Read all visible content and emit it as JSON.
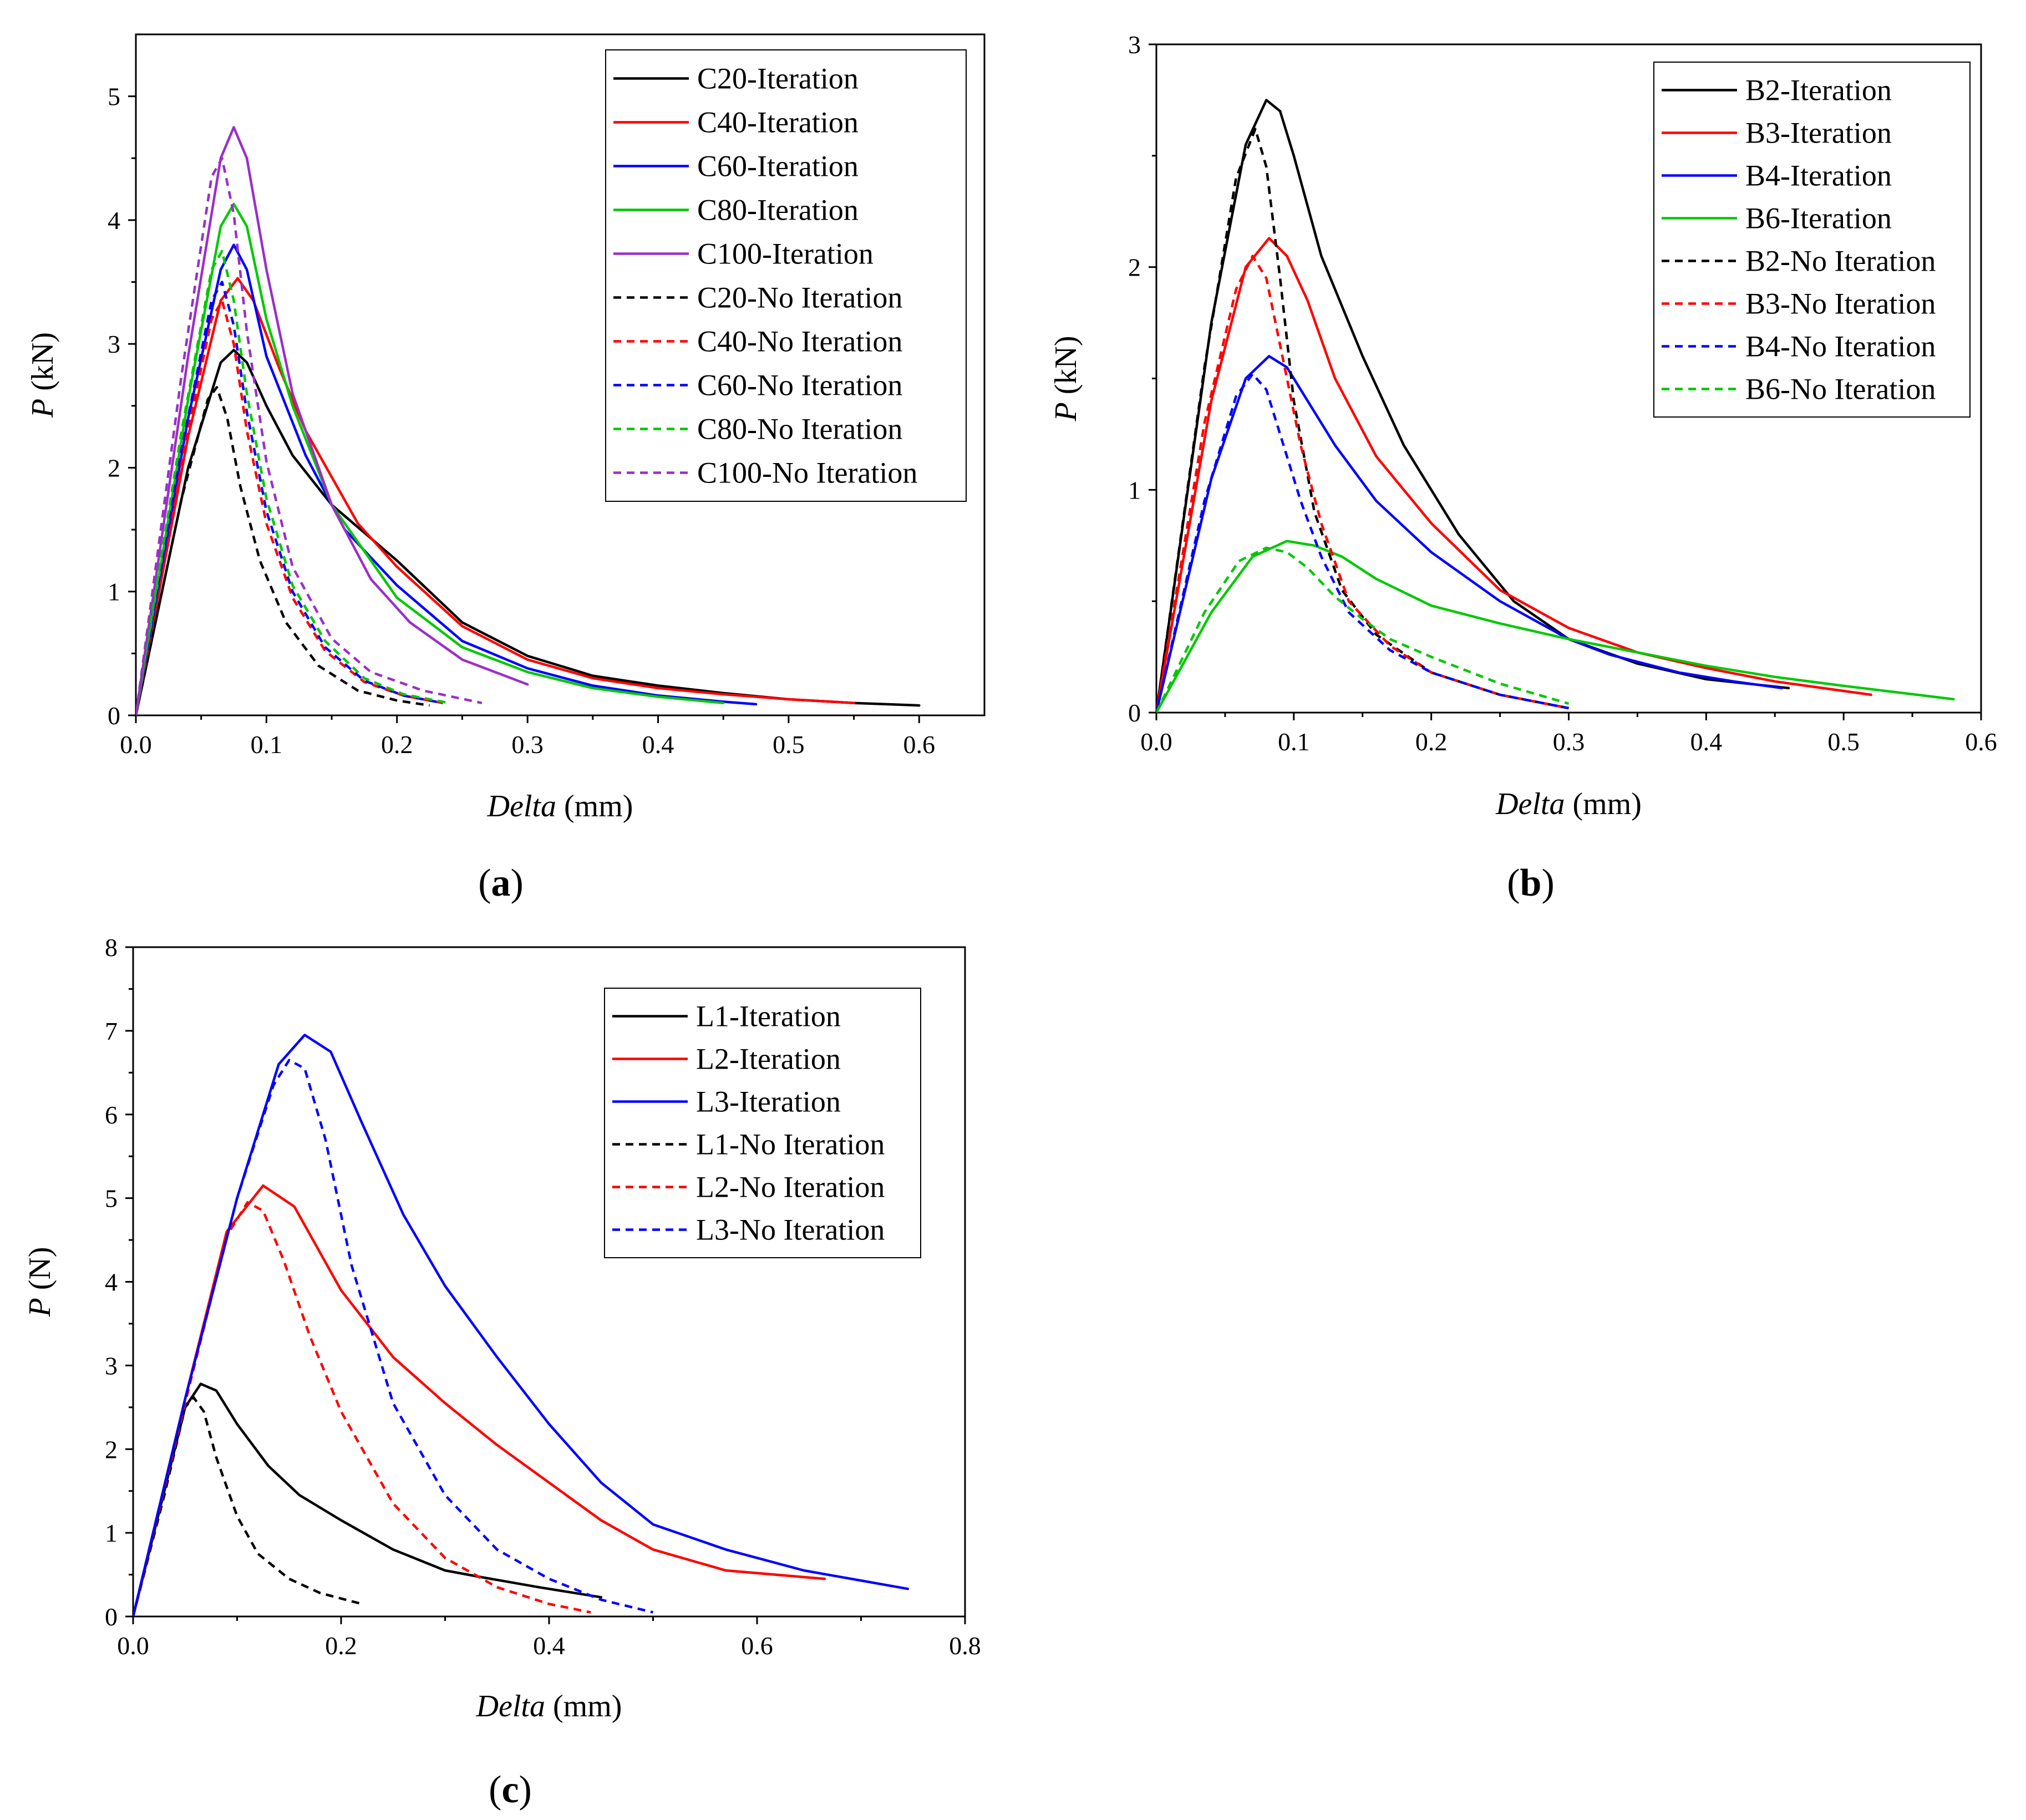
{
  "chart_data": [
    {
      "panel": "a",
      "type": "line",
      "caption_letter": "a",
      "xlabel_var": "Delta",
      "xlabel_unit": "(mm)",
      "ylabel_var": "P",
      "ylabel_unit": "(kN)",
      "xlim": [
        0,
        0.65
      ],
      "ylim": [
        0,
        5.5
      ],
      "xticks": [
        "0.0",
        "0.1",
        "0.2",
        "0.3",
        "0.4",
        "0.5",
        "0.6"
      ],
      "yticks": [
        "0",
        "1",
        "2",
        "3",
        "4",
        "5"
      ],
      "legend_position": "top-right",
      "series": [
        {
          "name": "C20-Iteration",
          "color": "#000000",
          "dashed": false,
          "x": [
            0,
            0.04,
            0.065,
            0.075,
            0.085,
            0.1,
            0.12,
            0.15,
            0.2,
            0.25,
            0.3,
            0.35,
            0.4,
            0.45,
            0.5,
            0.55,
            0.6
          ],
          "y": [
            0,
            2.0,
            2.85,
            2.95,
            2.85,
            2.5,
            2.1,
            1.7,
            1.25,
            0.75,
            0.48,
            0.32,
            0.24,
            0.18,
            0.13,
            0.1,
            0.08
          ]
        },
        {
          "name": "C40-Iteration",
          "color": "#ff0000",
          "dashed": false,
          "x": [
            0,
            0.04,
            0.065,
            0.078,
            0.09,
            0.11,
            0.13,
            0.17,
            0.2,
            0.25,
            0.3,
            0.35,
            0.4,
            0.45,
            0.5,
            0.55
          ],
          "y": [
            0,
            2.25,
            3.35,
            3.53,
            3.35,
            2.8,
            2.3,
            1.55,
            1.2,
            0.72,
            0.45,
            0.3,
            0.22,
            0.17,
            0.13,
            0.1
          ]
        },
        {
          "name": "C60-Iteration",
          "color": "#0000ff",
          "dashed": false,
          "x": [
            0,
            0.04,
            0.065,
            0.075,
            0.085,
            0.1,
            0.13,
            0.16,
            0.2,
            0.25,
            0.3,
            0.35,
            0.4,
            0.45,
            0.475
          ],
          "y": [
            0,
            2.4,
            3.6,
            3.8,
            3.6,
            2.9,
            2.1,
            1.5,
            1.05,
            0.6,
            0.38,
            0.24,
            0.16,
            0.11,
            0.09
          ]
        },
        {
          "name": "C80-Iteration",
          "color": "#00c800",
          "dashed": false,
          "x": [
            0,
            0.04,
            0.065,
            0.075,
            0.085,
            0.1,
            0.12,
            0.15,
            0.2,
            0.25,
            0.3,
            0.35,
            0.4,
            0.45
          ],
          "y": [
            0,
            2.55,
            3.95,
            4.13,
            3.95,
            3.2,
            2.5,
            1.7,
            0.95,
            0.55,
            0.35,
            0.22,
            0.15,
            0.1
          ]
        },
        {
          "name": "C100-Iteration",
          "color": "#9b2fc8",
          "dashed": false,
          "x": [
            0,
            0.04,
            0.065,
            0.075,
            0.085,
            0.1,
            0.12,
            0.15,
            0.18,
            0.21,
            0.25,
            0.3
          ],
          "y": [
            0,
            2.9,
            4.5,
            4.75,
            4.5,
            3.6,
            2.6,
            1.7,
            1.1,
            0.75,
            0.45,
            0.25
          ]
        },
        {
          "name": "C20-No Iteration",
          "color": "#000000",
          "dashed": true,
          "x": [
            0,
            0.035,
            0.055,
            0.062,
            0.07,
            0.08,
            0.095,
            0.115,
            0.14,
            0.17,
            0.2,
            0.225
          ],
          "y": [
            0,
            1.75,
            2.55,
            2.65,
            2.4,
            1.85,
            1.25,
            0.75,
            0.4,
            0.2,
            0.12,
            0.08
          ]
        },
        {
          "name": "C40-No Iteration",
          "color": "#ff0000",
          "dashed": true,
          "x": [
            0,
            0.035,
            0.058,
            0.066,
            0.075,
            0.085,
            0.1,
            0.12,
            0.145,
            0.175,
            0.205,
            0.235
          ],
          "y": [
            0,
            2.05,
            3.2,
            3.35,
            3.0,
            2.3,
            1.55,
            0.95,
            0.52,
            0.27,
            0.16,
            0.1
          ]
        },
        {
          "name": "C60-No Iteration",
          "color": "#0000ff",
          "dashed": true,
          "x": [
            0,
            0.035,
            0.058,
            0.066,
            0.075,
            0.085,
            0.1,
            0.12,
            0.145,
            0.175,
            0.205,
            0.235
          ],
          "y": [
            0,
            2.15,
            3.35,
            3.5,
            3.15,
            2.45,
            1.65,
            1.0,
            0.55,
            0.28,
            0.16,
            0.1
          ]
        },
        {
          "name": "C80-No Iteration",
          "color": "#00c800",
          "dashed": true,
          "x": [
            0,
            0.035,
            0.058,
            0.066,
            0.075,
            0.085,
            0.1,
            0.12,
            0.145,
            0.175,
            0.205,
            0.24
          ],
          "y": [
            0,
            2.3,
            3.6,
            3.75,
            3.35,
            2.6,
            1.75,
            1.05,
            0.6,
            0.3,
            0.17,
            0.1
          ]
        },
        {
          "name": "C100-No Iteration",
          "color": "#9b2fc8",
          "dashed": true,
          "x": [
            0,
            0.035,
            0.058,
            0.066,
            0.075,
            0.085,
            0.1,
            0.12,
            0.15,
            0.18,
            0.22,
            0.265
          ],
          "y": [
            0,
            2.75,
            4.35,
            4.5,
            4.05,
            3.1,
            2.05,
            1.2,
            0.62,
            0.35,
            0.2,
            0.1
          ]
        }
      ]
    },
    {
      "panel": "b",
      "type": "line",
      "caption_letter": "b",
      "xlabel_var": "Delta",
      "xlabel_unit": "(mm)",
      "ylabel_var": "P",
      "ylabel_unit": "(kN)",
      "xlim": [
        0,
        0.6
      ],
      "ylim": [
        0,
        3
      ],
      "xticks": [
        "0.0",
        "0.1",
        "0.2",
        "0.3",
        "0.4",
        "0.5",
        "0.6"
      ],
      "yticks": [
        "0",
        "1",
        "2",
        "3"
      ],
      "legend_position": "top-right",
      "series": [
        {
          "name": "B2-Iteration",
          "color": "#000000",
          "dashed": false,
          "x": [
            0,
            0.04,
            0.065,
            0.08,
            0.09,
            0.1,
            0.12,
            0.15,
            0.18,
            0.22,
            0.26,
            0.3,
            0.35,
            0.4,
            0.46
          ],
          "y": [
            0,
            1.75,
            2.55,
            2.75,
            2.7,
            2.5,
            2.05,
            1.6,
            1.2,
            0.8,
            0.5,
            0.33,
            0.22,
            0.15,
            0.11
          ]
        },
        {
          "name": "B3-Iteration",
          "color": "#ff0000",
          "dashed": false,
          "x": [
            0,
            0.04,
            0.065,
            0.082,
            0.095,
            0.11,
            0.13,
            0.16,
            0.2,
            0.25,
            0.3,
            0.35,
            0.4,
            0.45,
            0.52
          ],
          "y": [
            0,
            1.4,
            2.0,
            2.13,
            2.05,
            1.85,
            1.5,
            1.15,
            0.85,
            0.55,
            0.38,
            0.27,
            0.2,
            0.14,
            0.08
          ]
        },
        {
          "name": "B4-Iteration",
          "color": "#0000ff",
          "dashed": false,
          "x": [
            0,
            0.04,
            0.065,
            0.082,
            0.095,
            0.11,
            0.13,
            0.16,
            0.2,
            0.25,
            0.3,
            0.33,
            0.38,
            0.42,
            0.455
          ],
          "y": [
            0,
            1.05,
            1.5,
            1.6,
            1.55,
            1.4,
            1.2,
            0.95,
            0.72,
            0.5,
            0.33,
            0.26,
            0.18,
            0.14,
            0.11
          ]
        },
        {
          "name": "B6-Iteration",
          "color": "#00c800",
          "dashed": false,
          "x": [
            0,
            0.04,
            0.07,
            0.095,
            0.115,
            0.135,
            0.16,
            0.2,
            0.25,
            0.3,
            0.35,
            0.4,
            0.45,
            0.5,
            0.58
          ],
          "y": [
            0,
            0.45,
            0.7,
            0.77,
            0.75,
            0.7,
            0.6,
            0.48,
            0.4,
            0.33,
            0.27,
            0.21,
            0.16,
            0.12,
            0.06
          ]
        },
        {
          "name": "B2-No Iteration",
          "color": "#000000",
          "dashed": true,
          "x": [
            0,
            0.035,
            0.058,
            0.072,
            0.08,
            0.09,
            0.1,
            0.115,
            0.135,
            0.16,
            0.2,
            0.25,
            0.3
          ],
          "y": [
            0,
            1.55,
            2.4,
            2.62,
            2.45,
            1.95,
            1.4,
            0.9,
            0.55,
            0.35,
            0.18,
            0.08,
            0.02
          ]
        },
        {
          "name": "B3-No Iteration",
          "color": "#ff0000",
          "dashed": true,
          "x": [
            0,
            0.035,
            0.058,
            0.07,
            0.08,
            0.09,
            0.105,
            0.12,
            0.14,
            0.17,
            0.2,
            0.25,
            0.3
          ],
          "y": [
            0,
            1.3,
            1.9,
            2.05,
            1.95,
            1.65,
            1.2,
            0.85,
            0.5,
            0.3,
            0.18,
            0.08,
            0.02
          ]
        },
        {
          "name": "B4-No Iteration",
          "color": "#0000ff",
          "dashed": true,
          "x": [
            0,
            0.035,
            0.058,
            0.07,
            0.08,
            0.09,
            0.105,
            0.12,
            0.14,
            0.17,
            0.2,
            0.25,
            0.3
          ],
          "y": [
            0,
            0.95,
            1.42,
            1.52,
            1.45,
            1.25,
            0.95,
            0.7,
            0.45,
            0.28,
            0.18,
            0.08,
            0.02
          ]
        },
        {
          "name": "B6-No Iteration",
          "color": "#00c800",
          "dashed": true,
          "x": [
            0,
            0.035,
            0.06,
            0.08,
            0.095,
            0.11,
            0.13,
            0.15,
            0.17,
            0.2,
            0.25,
            0.3
          ],
          "y": [
            0,
            0.45,
            0.68,
            0.74,
            0.72,
            0.65,
            0.52,
            0.42,
            0.33,
            0.25,
            0.13,
            0.04
          ]
        }
      ]
    },
    {
      "panel": "c",
      "type": "line",
      "caption_letter": "c",
      "xlabel_var": "Delta",
      "xlabel_unit": "(mm)",
      "ylabel_var": "P",
      "ylabel_unit": "(N)",
      "xlim": [
        0,
        0.8
      ],
      "ylim": [
        0,
        8
      ],
      "xticks": [
        "0.0",
        "0.2",
        "0.4",
        "0.6",
        "0.8"
      ],
      "yticks": [
        "0",
        "1",
        "2",
        "3",
        "4",
        "5",
        "6",
        "7",
        "8"
      ],
      "legend_position": "top-right",
      "series": [
        {
          "name": "L1-Iteration",
          "color": "#000000",
          "dashed": false,
          "x": [
            0,
            0.03,
            0.05,
            0.065,
            0.08,
            0.1,
            0.13,
            0.16,
            0.2,
            0.25,
            0.3,
            0.335,
            0.39,
            0.45
          ],
          "y": [
            0,
            1.5,
            2.5,
            2.78,
            2.7,
            2.3,
            1.8,
            1.45,
            1.15,
            0.8,
            0.55,
            0.47,
            0.35,
            0.23
          ]
        },
        {
          "name": "L2-Iteration",
          "color": "#ff0000",
          "dashed": false,
          "x": [
            0,
            0.05,
            0.09,
            0.125,
            0.155,
            0.2,
            0.25,
            0.3,
            0.35,
            0.4,
            0.45,
            0.5,
            0.57,
            0.665
          ],
          "y": [
            0,
            2.6,
            4.6,
            5.15,
            4.9,
            3.9,
            3.1,
            2.55,
            2.05,
            1.6,
            1.15,
            0.8,
            0.55,
            0.45
          ]
        },
        {
          "name": "L3-Iteration",
          "color": "#0000ff",
          "dashed": false,
          "x": [
            0,
            0.05,
            0.1,
            0.14,
            0.165,
            0.19,
            0.22,
            0.26,
            0.3,
            0.35,
            0.4,
            0.45,
            0.5,
            0.57,
            0.645,
            0.745
          ],
          "y": [
            0,
            2.6,
            5.0,
            6.6,
            6.95,
            6.75,
            5.9,
            4.8,
            3.95,
            3.1,
            2.3,
            1.6,
            1.1,
            0.8,
            0.55,
            0.33
          ]
        },
        {
          "name": "L1-No Iteration",
          "color": "#000000",
          "dashed": true,
          "x": [
            0,
            0.03,
            0.05,
            0.058,
            0.068,
            0.08,
            0.1,
            0.12,
            0.15,
            0.18,
            0.22
          ],
          "y": [
            0,
            1.45,
            2.5,
            2.62,
            2.45,
            1.9,
            1.2,
            0.75,
            0.45,
            0.28,
            0.15
          ]
        },
        {
          "name": "L2-No Iteration",
          "color": "#ff0000",
          "dashed": true,
          "x": [
            0,
            0.05,
            0.09,
            0.11,
            0.125,
            0.145,
            0.17,
            0.2,
            0.25,
            0.3,
            0.35,
            0.4,
            0.44
          ],
          "y": [
            0,
            2.55,
            4.55,
            4.95,
            4.85,
            4.25,
            3.35,
            2.45,
            1.35,
            0.7,
            0.35,
            0.15,
            0.05
          ]
        },
        {
          "name": "L3-No Iteration",
          "color": "#0000ff",
          "dashed": true,
          "x": [
            0,
            0.05,
            0.1,
            0.135,
            0.15,
            0.165,
            0.185,
            0.21,
            0.25,
            0.3,
            0.35,
            0.4,
            0.45,
            0.5
          ],
          "y": [
            0,
            2.6,
            5.0,
            6.35,
            6.65,
            6.55,
            5.7,
            4.2,
            2.55,
            1.45,
            0.8,
            0.45,
            0.2,
            0.05
          ]
        }
      ]
    }
  ]
}
